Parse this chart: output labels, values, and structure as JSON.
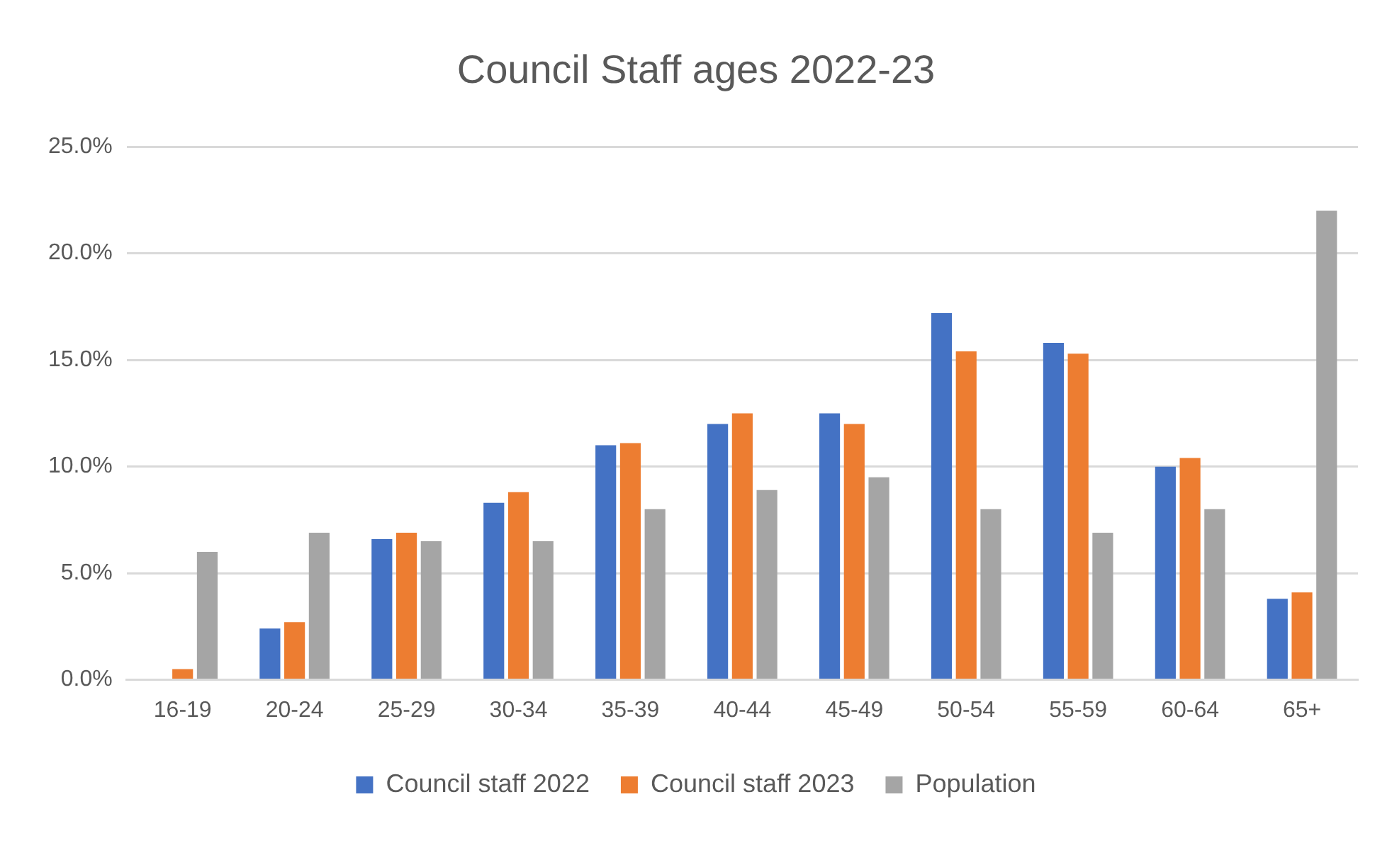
{
  "chart_data": {
    "type": "bar",
    "title": "Council Staff ages 2022-23",
    "categories": [
      "16-19",
      "20-24",
      "25-29",
      "30-34",
      "35-39",
      "40-44",
      "45-49",
      "50-54",
      "55-59",
      "60-64",
      "65+"
    ],
    "series": [
      {
        "name": "Council staff 2022",
        "color": "#4472c4",
        "values": [
          0,
          2.4,
          6.6,
          8.3,
          11.0,
          12.0,
          12.5,
          17.2,
          15.8,
          10.0,
          3.8
        ]
      },
      {
        "name": "Council staff 2023",
        "color": "#ed7d31",
        "values": [
          0.5,
          2.7,
          6.9,
          8.8,
          11.1,
          12.5,
          12.0,
          15.4,
          15.3,
          10.4,
          4.1
        ]
      },
      {
        "name": "Population",
        "color": "#a5a5a5",
        "values": [
          6.0,
          6.9,
          6.5,
          6.5,
          8.0,
          8.9,
          9.5,
          8.0,
          6.9,
          8.0,
          22.0
        ]
      }
    ],
    "ylim": [
      0,
      25
    ],
    "yticks": [
      {
        "value": 0,
        "label": "0.0%"
      },
      {
        "value": 5,
        "label": "5.0%"
      },
      {
        "value": 10,
        "label": "10.0%"
      },
      {
        "value": 15,
        "label": "15.0%"
      },
      {
        "value": 20,
        "label": "20.0%"
      },
      {
        "value": 25,
        "label": "25.0%"
      }
    ],
    "grid": "y",
    "legend": "bottom"
  }
}
